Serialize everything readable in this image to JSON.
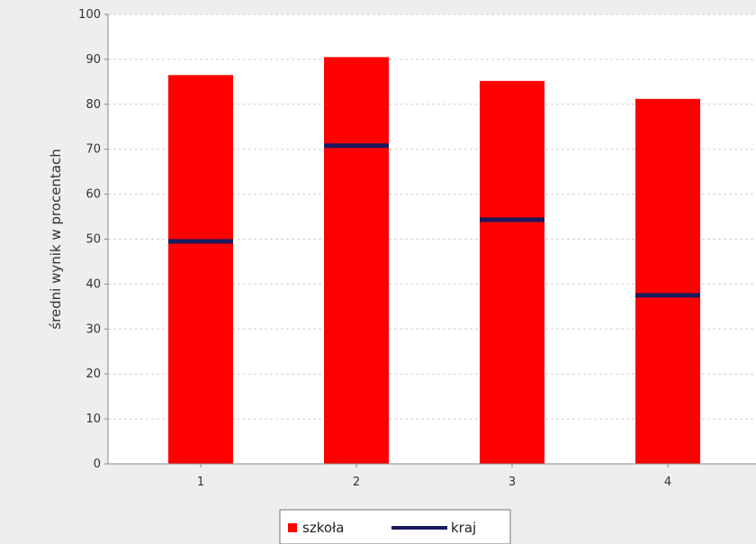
{
  "chart_data": {
    "type": "bar",
    "categories": [
      "1",
      "2",
      "3",
      "4"
    ],
    "series": [
      {
        "name": "szkoła",
        "kind": "bar",
        "color": "#ff0000",
        "values": [
          86.5,
          90.5,
          85.2,
          81.2
        ]
      },
      {
        "name": "kraj",
        "kind": "marker",
        "color": "#1a1a5e",
        "values": [
          49.5,
          70.8,
          54.3,
          37.5
        ]
      }
    ],
    "title": "",
    "xlabel": "",
    "ylabel": "średni wynik w procentach",
    "ylim": [
      0,
      100
    ],
    "yticks": [
      0,
      10,
      20,
      30,
      40,
      50,
      60,
      70,
      80,
      90,
      100
    ],
    "grid": true,
    "legend": {
      "position": "bottom-center",
      "entries": [
        {
          "label": "szkoła",
          "symbol": "square",
          "color": "#ff0000"
        },
        {
          "label": "kraj",
          "symbol": "line",
          "color": "#1a1a5e"
        }
      ]
    },
    "plot_background": "#ffffff",
    "page_background": "#eeeeee"
  }
}
